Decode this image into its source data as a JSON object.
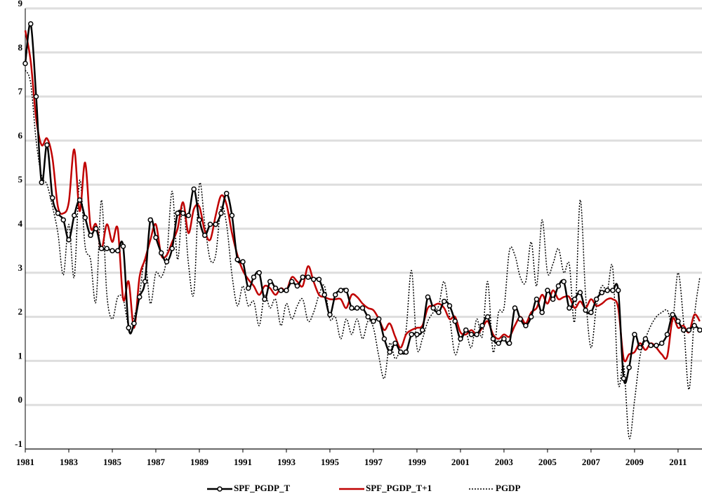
{
  "chart_data": {
    "type": "line",
    "x": [
      1981,
      1981.25,
      1981.5,
      1981.75,
      1982,
      1982.25,
      1982.5,
      1982.75,
      1983,
      1983.25,
      1983.5,
      1983.75,
      1984,
      1984.25,
      1984.5,
      1984.75,
      1985,
      1985.25,
      1985.5,
      1985.75,
      1986,
      1986.25,
      1986.5,
      1986.75,
      1987,
      1987.25,
      1987.5,
      1987.75,
      1988,
      1988.25,
      1988.5,
      1988.75,
      1989,
      1989.25,
      1989.5,
      1989.75,
      1990,
      1990.25,
      1990.5,
      1990.75,
      1991,
      1991.25,
      1991.5,
      1991.75,
      1992,
      1992.25,
      1992.5,
      1992.75,
      1993,
      1993.25,
      1993.5,
      1993.75,
      1994,
      1994.25,
      1994.5,
      1994.75,
      1995,
      1995.25,
      1995.5,
      1995.75,
      1996,
      1996.25,
      1996.5,
      1996.75,
      1997,
      1997.25,
      1997.5,
      1997.75,
      1998,
      1998.25,
      1998.5,
      1998.75,
      1999,
      1999.25,
      1999.5,
      1999.75,
      2000,
      2000.25,
      2000.5,
      2000.75,
      2001,
      2001.25,
      2001.5,
      2001.75,
      2002,
      2002.25,
      2002.5,
      2002.75,
      2003,
      2003.25,
      2003.5,
      2003.75,
      2004,
      2004.25,
      2004.5,
      2004.75,
      2005,
      2005.25,
      2005.5,
      2005.75,
      2006,
      2006.25,
      2006.5,
      2006.75,
      2007,
      2007.25,
      2007.5,
      2007.75,
      2008,
      2008.25,
      2008.5,
      2008.75,
      2009,
      2009.25,
      2009.5,
      2009.75,
      2010,
      2010.25,
      2010.5,
      2010.75,
      2011,
      2011.25,
      2011.5,
      2011.75,
      2012
    ],
    "series": [
      {
        "name": "SPF_PGDP_T",
        "color": "#000000",
        "dash": "solid",
        "marker": "circle",
        "values": [
          7.75,
          8.65,
          7.0,
          5.05,
          5.9,
          4.7,
          4.35,
          4.2,
          3.75,
          4.3,
          4.65,
          4.25,
          3.85,
          4.0,
          3.55,
          3.55,
          3.5,
          3.5,
          3.6,
          1.75,
          1.85,
          2.45,
          2.8,
          4.2,
          3.8,
          3.45,
          3.25,
          3.55,
          4.35,
          4.35,
          4.3,
          4.9,
          4.2,
          3.85,
          4.1,
          4.1,
          4.35,
          4.8,
          4.3,
          3.3,
          3.25,
          2.65,
          2.9,
          3.0,
          2.4,
          2.8,
          2.65,
          2.6,
          2.6,
          2.8,
          2.7,
          2.9,
          2.9,
          2.85,
          2.85,
          2.5,
          2.05,
          2.5,
          2.6,
          2.6,
          2.2,
          2.2,
          2.2,
          2.0,
          1.9,
          1.95,
          1.5,
          1.2,
          1.4,
          1.2,
          1.2,
          1.6,
          1.6,
          1.7,
          2.45,
          2.2,
          2.1,
          2.35,
          2.25,
          1.9,
          1.5,
          1.7,
          1.6,
          1.6,
          1.8,
          2.0,
          1.5,
          1.4,
          1.5,
          1.4,
          2.2,
          1.95,
          1.8,
          2.0,
          2.4,
          2.1,
          2.6,
          2.4,
          2.7,
          2.8,
          2.2,
          2.4,
          2.55,
          2.15,
          2.1,
          2.4,
          2.55,
          2.6,
          2.6,
          2.6,
          0.6,
          0.85,
          1.6,
          1.3,
          1.5,
          1.35,
          1.35,
          1.4,
          1.6,
          2.05,
          1.9,
          1.7,
          1.7,
          1.8,
          1.7
        ]
      },
      {
        "name": "SPF_PGDP_T+1",
        "color": "#c00000",
        "dash": "solid",
        "marker": "none",
        "values": [
          8.5,
          7.8,
          6.5,
          5.9,
          6.05,
          5.6,
          4.5,
          4.35,
          4.6,
          5.8,
          4.4,
          5.5,
          4.05,
          4.1,
          3.55,
          4.1,
          3.7,
          4.0,
          2.4,
          2.8,
          1.75,
          2.9,
          3.3,
          3.75,
          4.1,
          3.4,
          3.4,
          3.7,
          4.0,
          4.6,
          3.9,
          4.45,
          4.5,
          3.95,
          3.75,
          4.3,
          4.75,
          4.55,
          3.9,
          3.4,
          3.05,
          2.85,
          2.7,
          2.5,
          2.7,
          2.65,
          2.5,
          2.65,
          2.6,
          2.9,
          2.8,
          2.7,
          3.15,
          2.8,
          2.5,
          2.45,
          2.4,
          2.4,
          2.4,
          2.2,
          2.5,
          2.45,
          2.3,
          2.2,
          2.15,
          1.95,
          1.7,
          1.85,
          1.55,
          1.3,
          1.6,
          1.7,
          1.75,
          1.8,
          2.2,
          2.25,
          2.3,
          2.2,
          1.95,
          2.0,
          1.65,
          1.6,
          1.7,
          1.6,
          1.75,
          1.9,
          1.6,
          1.5,
          1.6,
          1.55,
          1.8,
          2.0,
          1.85,
          2.1,
          2.2,
          2.5,
          2.3,
          2.6,
          2.4,
          2.45,
          2.45,
          2.2,
          2.35,
          2.2,
          2.4,
          2.25,
          2.3,
          2.4,
          2.4,
          2.2,
          1.05,
          1.15,
          1.2,
          1.4,
          1.25,
          1.4,
          1.3,
          1.15,
          1.1,
          1.95,
          1.75,
          1.8,
          1.65,
          2.05,
          1.9
        ]
      },
      {
        "name": "PGDP",
        "color": "#000000",
        "dash": "dotted",
        "marker": "none",
        "values": [
          7.6,
          7.3,
          6.0,
          5.2,
          5.0,
          4.5,
          3.9,
          2.95,
          4.1,
          2.9,
          5.1,
          3.6,
          3.3,
          2.35,
          4.65,
          2.5,
          1.95,
          2.45,
          2.4,
          1.8,
          2.0,
          2.5,
          3.3,
          2.3,
          3.0,
          2.9,
          3.35,
          4.85,
          3.3,
          4.6,
          3.2,
          2.55,
          5.0,
          4.1,
          3.3,
          3.4,
          4.5,
          4.1,
          2.95,
          2.25,
          2.7,
          2.25,
          2.35,
          1.8,
          2.5,
          2.2,
          2.4,
          1.8,
          2.3,
          1.95,
          2.25,
          2.4,
          1.9,
          2.1,
          2.5,
          2.7,
          1.95,
          2.0,
          1.5,
          1.95,
          1.6,
          1.95,
          1.5,
          1.9,
          1.75,
          1.1,
          0.6,
          1.4,
          1.05,
          1.3,
          1.7,
          3.05,
          1.3,
          1.5,
          1.9,
          2.1,
          2.25,
          2.8,
          2.0,
          1.15,
          1.5,
          1.65,
          1.3,
          1.95,
          1.55,
          2.8,
          1.2,
          2.1,
          2.2,
          3.5,
          3.4,
          2.9,
          2.8,
          3.7,
          2.7,
          4.2,
          3.0,
          3.2,
          3.55,
          3.0,
          3.2,
          1.9,
          4.65,
          2.5,
          1.3,
          2.25,
          2.7,
          2.6,
          3.1,
          0.5,
          0.9,
          -0.75,
          0.1,
          1.1,
          1.5,
          1.8,
          2.0,
          2.1,
          2.15,
          1.9,
          3.0,
          1.9,
          0.35,
          2.0,
          2.9
        ]
      }
    ],
    "xlim": [
      1981,
      2012.1
    ],
    "xticks": [
      1981,
      1983,
      1985,
      1987,
      1989,
      1991,
      1993,
      1995,
      1997,
      1999,
      2001,
      2003,
      2005,
      2007,
      2009,
      2011
    ],
    "ylim": [
      -1,
      9
    ],
    "yticks": [
      -1,
      0,
      1,
      2,
      3,
      4,
      5,
      6,
      7,
      8,
      9
    ],
    "grid": true,
    "legend": "bottom"
  }
}
